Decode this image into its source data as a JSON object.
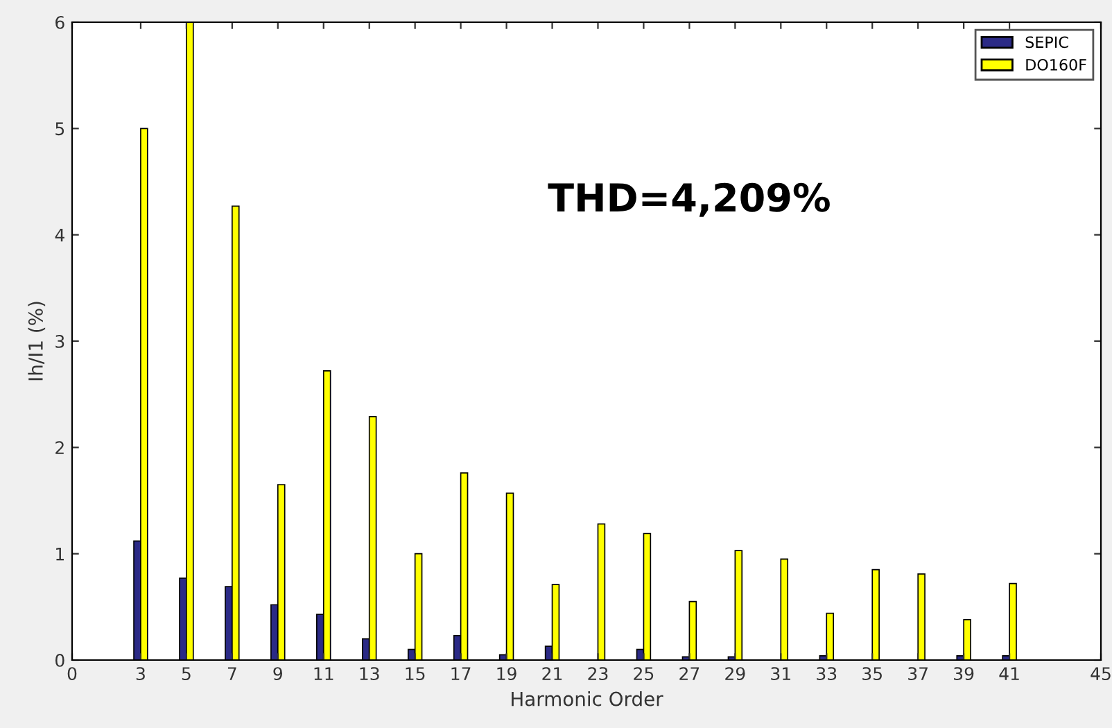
{
  "chart_data": {
    "type": "bar",
    "xlabel": "Harmonic Order",
    "ylabel": "Ih/I1 (%)",
    "x": [
      3,
      5,
      7,
      9,
      11,
      13,
      15,
      17,
      19,
      21,
      23,
      25,
      27,
      29,
      31,
      33,
      35,
      37,
      39,
      41
    ],
    "series": [
      {
        "name": "SEPIC",
        "color": "#2b2a86",
        "values": [
          1.12,
          0.77,
          0.69,
          0.52,
          0.43,
          0.2,
          0.1,
          0.23,
          0.05,
          0.13,
          null,
          0.1,
          0.03,
          0.03,
          null,
          0.04,
          null,
          null,
          0.04,
          0.04
        ]
      },
      {
        "name": "DO160F",
        "color": "#ffff00",
        "values": [
          5.0,
          6.0,
          4.27,
          1.65,
          2.72,
          2.29,
          1.0,
          1.76,
          1.57,
          0.71,
          1.28,
          1.19,
          0.55,
          1.03,
          0.95,
          0.44,
          0.85,
          0.81,
          0.38,
          0.72
        ]
      }
    ],
    "xlim": [
      0,
      45
    ],
    "xticks": [
      0,
      3,
      5,
      7,
      9,
      11,
      13,
      15,
      17,
      19,
      21,
      23,
      25,
      27,
      29,
      31,
      33,
      35,
      37,
      39,
      41,
      45
    ],
    "ylim": [
      0,
      6
    ],
    "yticks": [
      0,
      1,
      2,
      3,
      4,
      5,
      6
    ],
    "annotations": [
      "THD=4,209%"
    ],
    "legend": "top right",
    "grid": false
  }
}
